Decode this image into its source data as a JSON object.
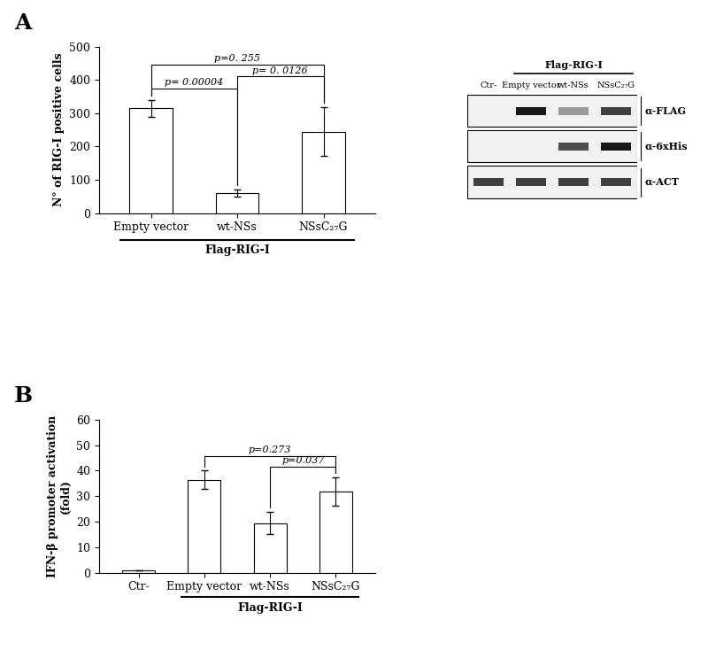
{
  "chart_data": [
    {
      "type": "bar",
      "panel": "A",
      "y_label": "N° of RIG-I positive cells",
      "categories": [
        "Empty vector",
        "wt-NSs",
        "NSsC₂₇G"
      ],
      "values": [
        315,
        60,
        245
      ],
      "errors": [
        25,
        10,
        72
      ],
      "color": "#ffffff",
      "ylim": [
        0,
        500
      ],
      "yticks": [
        0,
        100,
        200,
        300,
        400,
        500
      ],
      "grid": false,
      "group_label": {
        "text": "Flag-RIG-I",
        "categories": [
          "Empty vector",
          "wt-NSs",
          "NSsC₂₇G"
        ]
      },
      "annotations": [
        {
          "text": "p= 0.00004",
          "from": "Empty vector",
          "to": "wt-NSs"
        },
        {
          "text": "p= 0. 0126",
          "from": "wt-NSs",
          "to": "NSsC₂₇G"
        },
        {
          "text": "p=0. 255",
          "from": "Empty vector",
          "to": "NSsC₂₇G"
        }
      ]
    },
    {
      "type": "bar",
      "panel": "B",
      "y_label": "IFN-β promoter activation\n(fold)",
      "categories": [
        "Ctr-",
        "Empty vector",
        "wt-NSs",
        "NSsC₂₇G"
      ],
      "values": [
        1,
        36.5,
        19.5,
        31.8
      ],
      "errors": [
        0.1,
        3.5,
        4.5,
        5.5
      ],
      "color": "#ffffff",
      "ylim": [
        0,
        60
      ],
      "yticks": [
        0,
        10,
        20,
        30,
        40,
        50,
        60
      ],
      "grid": false,
      "group_label": {
        "text": "Flag-RIG-I",
        "categories": [
          "Empty vector",
          "wt-NSs",
          "NSsC₂₇G"
        ]
      },
      "annotations": [
        {
          "text": "p=0.273",
          "from": "Empty vector",
          "to": "NSsC₂₇G"
        },
        {
          "text": "p=0.037",
          "from": "wt-NSs",
          "to": "NSsC₂₇G"
        }
      ]
    }
  ],
  "blot": {
    "columns": [
      "Ctr-",
      "Empty vector",
      "wt-NSs",
      "NSsC₂₇G"
    ],
    "group_label": {
      "text": "Flag-RIG-I",
      "columns": [
        "Empty vector",
        "wt-NSs",
        "NSsC₂₇G"
      ]
    },
    "rows": [
      {
        "label": "α-FLAG",
        "intensity": [
          0,
          0.9,
          0.4,
          0.75
        ]
      },
      {
        "label": "α-6xHis",
        "intensity": [
          0,
          0,
          0.7,
          0.9
        ]
      },
      {
        "label": "α-ACT",
        "intensity": [
          0.75,
          0.75,
          0.75,
          0.75
        ]
      }
    ]
  }
}
